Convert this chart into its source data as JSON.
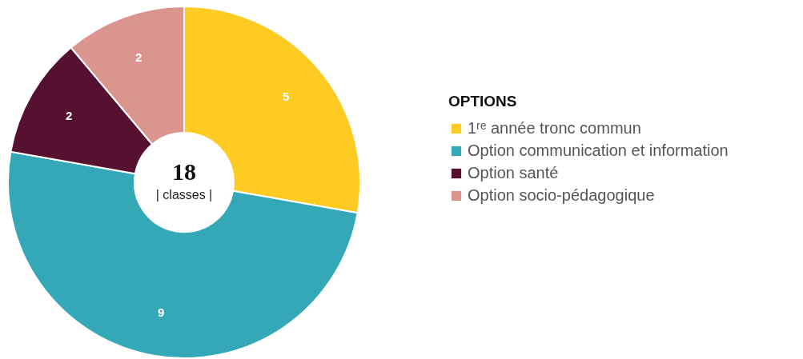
{
  "chart_data": {
    "type": "donut",
    "legend_title": "OPTIONS",
    "categories": [
      "1ʳᵉ année tronc commun",
      "Option communication et information",
      "Option santé",
      "Option socio-pédagogique"
    ],
    "values": [
      5,
      9,
      2,
      2
    ],
    "colors": [
      "#fdcb22",
      "#35a8b8",
      "#561030",
      "#db958f"
    ],
    "data_labels": true,
    "legend": "right",
    "annotations": [
      "18",
      "| classes |"
    ]
  }
}
